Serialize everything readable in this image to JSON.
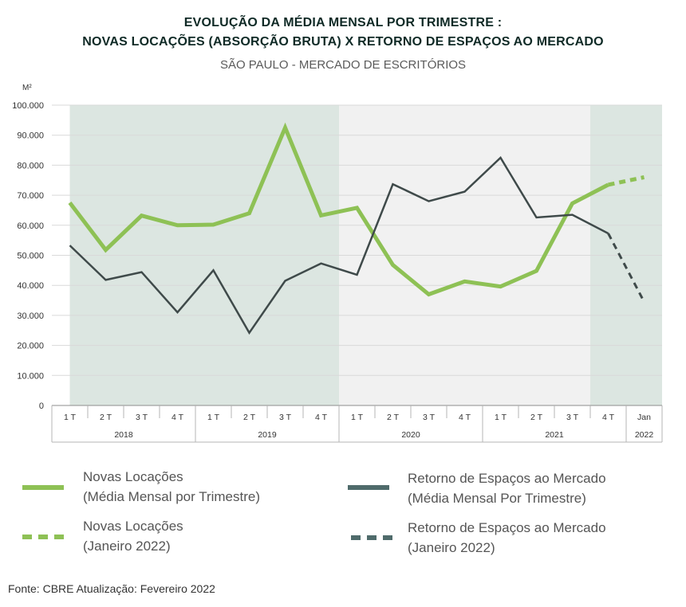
{
  "chart_data": {
    "type": "line",
    "title_line1": "EVOLUÇÃO DA MÉDIA MENSAL POR TRIMESTRE :",
    "title_line2": "NOVAS LOCAÇÕES (ABSORÇÃO BRUTA) X RETORNO DE ESPAÇOS AO MERCADO",
    "subtitle": "SÃO PAULO - MERCADO DE ESCRITÓRIOS",
    "ylabel": "M²",
    "ylim": [
      0,
      100000
    ],
    "yticks": [
      "0",
      "10.000",
      "20.000",
      "30.000",
      "40.000",
      "50.000",
      "60.000",
      "70.000",
      "80.000",
      "90.000",
      "100.000"
    ],
    "categories": [
      "1 T",
      "2 T",
      "3 T",
      "4 T",
      "1 T",
      "2 T",
      "3 T",
      "4 T",
      "1 T",
      "2 T",
      "3 T",
      "4 T",
      "1 T",
      "2 T",
      "3 T",
      "4 T",
      "Jan"
    ],
    "years": [
      {
        "label": "2018",
        "from": 0,
        "to": 3
      },
      {
        "label": "2019",
        "from": 4,
        "to": 7
      },
      {
        "label": "2020",
        "from": 8,
        "to": 11
      },
      {
        "label": "2021",
        "from": 12,
        "to": 15
      },
      {
        "label": "2022",
        "from": 16,
        "to": 16
      }
    ],
    "shading": [
      {
        "from": 0,
        "to": 7.5,
        "color": "#dce6e1"
      },
      {
        "from": 7.5,
        "to": 14.5,
        "color": "#f1f1f1"
      },
      {
        "from": 14.5,
        "to": 16.5,
        "color": "#dce6e1"
      }
    ],
    "series": [
      {
        "name": "Novas Locações (Média Mensal por Trimestre)",
        "color": "#8ec155",
        "values": [
          67500,
          51800,
          63200,
          60000,
          60200,
          64000,
          92500,
          63300,
          65800,
          46800,
          37000,
          41300,
          39600,
          44800,
          67300,
          73500,
          null
        ],
        "dashed_segment": {
          "values": [
            73500,
            76000
          ],
          "from": 15
        }
      },
      {
        "name": "Retorno de Espaços ao Mercado (Média Mensal Por Trimestre)",
        "color": "#3f4a4a",
        "values": [
          53300,
          41800,
          44400,
          31000,
          45000,
          24200,
          41500,
          47300,
          43500,
          73700,
          68000,
          71200,
          82500,
          62600,
          63500,
          57300,
          null
        ],
        "dashed_segment": {
          "values": [
            57300,
            34500
          ],
          "from": 15
        }
      }
    ]
  },
  "legend": {
    "items": [
      {
        "line1": "Novas Locações",
        "line2": "(Média Mensal por Trimestre)",
        "color": "#8ec155",
        "style": "solid"
      },
      {
        "line1": "Retorno de Espaços ao Mercado",
        "line2": "(Média Mensal Por Trimestre)",
        "color": "#4f6b6b",
        "style": "solid"
      },
      {
        "line1": "Novas Locações",
        "line2": "(Janeiro 2022)",
        "color": "#8ec155",
        "style": "dashed"
      },
      {
        "line1": "Retorno de Espaços ao Mercado",
        "line2": "(Janeiro 2022)",
        "color": "#4f6b6b",
        "style": "dashed"
      }
    ]
  },
  "source": "Fonte: CBRE Atualização: Fevereiro 2022"
}
